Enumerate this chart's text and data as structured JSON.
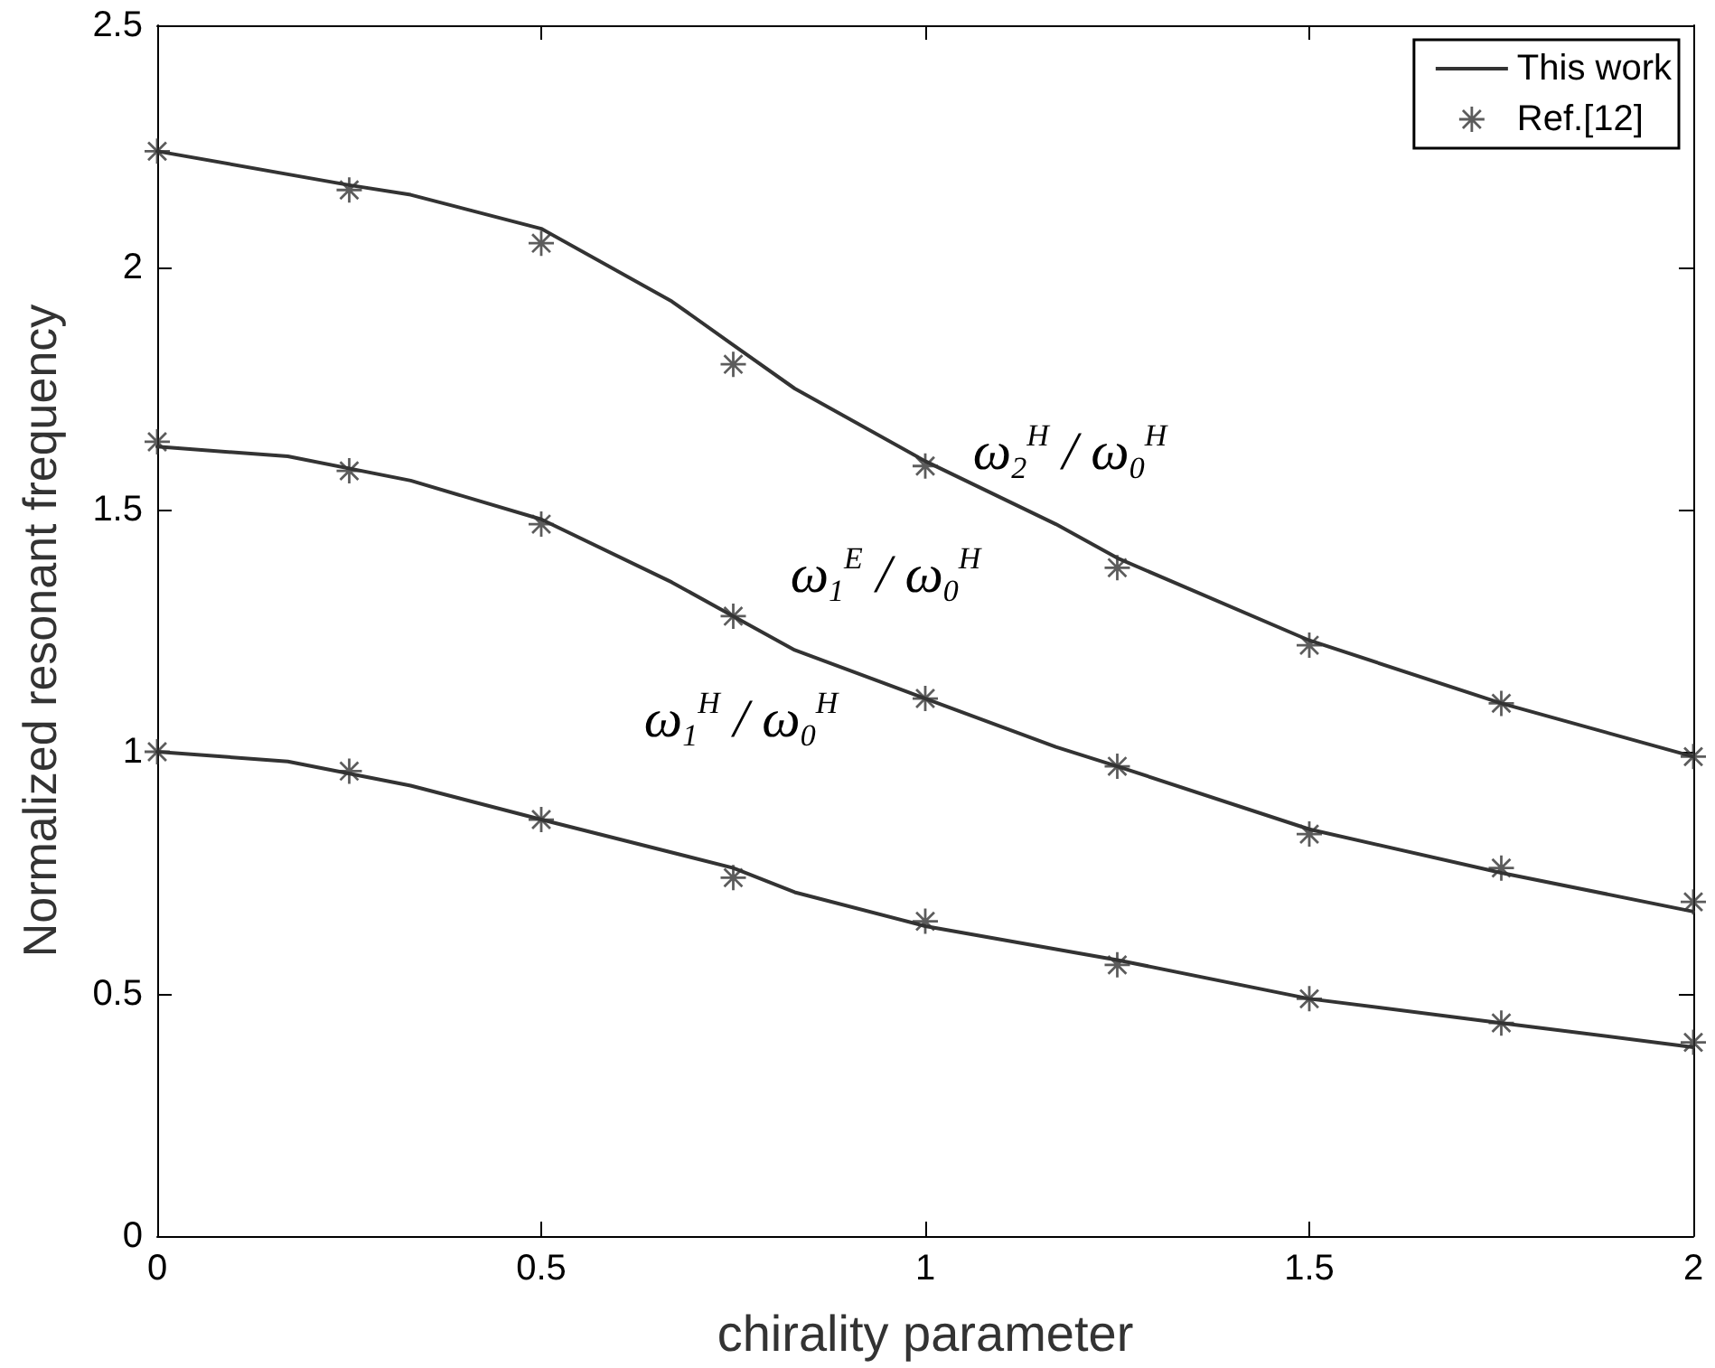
{
  "chart_data": {
    "type": "line",
    "xlabel": "chirality parameter",
    "ylabel": "Normalized resonant frequency",
    "xlim": [
      0,
      2
    ],
    "xticks": [
      0,
      0.5,
      1,
      1.5,
      2
    ],
    "ylim": [
      0,
      2.5
    ],
    "yticks": [
      0,
      0.5,
      1,
      1.5,
      2,
      2.5
    ],
    "grid": false,
    "legend": "top right",
    "line_style": "solid",
    "series": [
      {
        "name": "This work",
        "color": "#333333",
        "marker": "none",
        "x": [
          0,
          0.25,
          0.33,
          0.5,
          0.67,
          0.75,
          0.83,
          1.0,
          1.17,
          1.25,
          1.5,
          1.75,
          2.0
        ],
        "values": [
          2.24,
          2.17,
          2.15,
          2.08,
          1.93,
          1.84,
          1.75,
          1.6,
          1.47,
          1.4,
          1.23,
          1.1,
          0.99
        ]
      },
      {
        "color": "#333333",
        "marker": "none",
        "x": [
          0,
          0.17,
          0.33,
          0.5,
          0.67,
          0.75,
          0.83,
          1.0,
          1.17,
          1.25,
          1.5,
          1.75,
          2.0
        ],
        "values": [
          1.63,
          1.61,
          1.56,
          1.48,
          1.35,
          1.28,
          1.21,
          1.11,
          1.01,
          0.97,
          0.84,
          0.75,
          0.67
        ]
      },
      {
        "color": "#333333",
        "marker": "none",
        "x": [
          0,
          0.17,
          0.33,
          0.5,
          0.75,
          0.83,
          1.0,
          1.25,
          1.5,
          1.75,
          2.0
        ],
        "values": [
          1.0,
          0.98,
          0.93,
          0.86,
          0.76,
          0.71,
          0.64,
          0.57,
          0.49,
          0.44,
          0.39
        ]
      },
      {
        "type": "scatter",
        "name": "Ref.[12]",
        "color": "#333333",
        "marker": "star",
        "x": [
          0,
          0.25,
          0.5,
          0.75,
          1.0,
          1.25,
          1.5,
          1.75,
          2.0
        ],
        "values": [
          2.24,
          2.16,
          2.05,
          1.8,
          1.59,
          1.38,
          1.22,
          1.1,
          0.99
        ]
      },
      {
        "type": "scatter",
        "color": "#333333",
        "marker": "star",
        "x": [
          0,
          0.25,
          0.5,
          0.75,
          1.0,
          1.25,
          1.5,
          1.75,
          2.0
        ],
        "values": [
          1.64,
          1.58,
          1.47,
          1.28,
          1.11,
          0.97,
          0.83,
          0.76,
          0.69
        ]
      },
      {
        "type": "scatter",
        "color": "#333333",
        "marker": "star",
        "x": [
          0,
          0.25,
          0.5,
          0.75,
          1.0,
          1.25,
          1.5,
          1.75,
          2.0
        ],
        "values": [
          1.0,
          0.96,
          0.86,
          0.74,
          0.65,
          0.56,
          0.49,
          0.44,
          0.4
        ]
      }
    ],
    "annotations": [
      "ω$_{2}$$^{H}$ / ω$_{0}$$^{H}$",
      "ω$_{1}$$^{E}$ / ω$_{0}$$^{H}$",
      "ω$_{1}$$^{H}$ / ω$_{0}$$^{H}$"
    ]
  }
}
